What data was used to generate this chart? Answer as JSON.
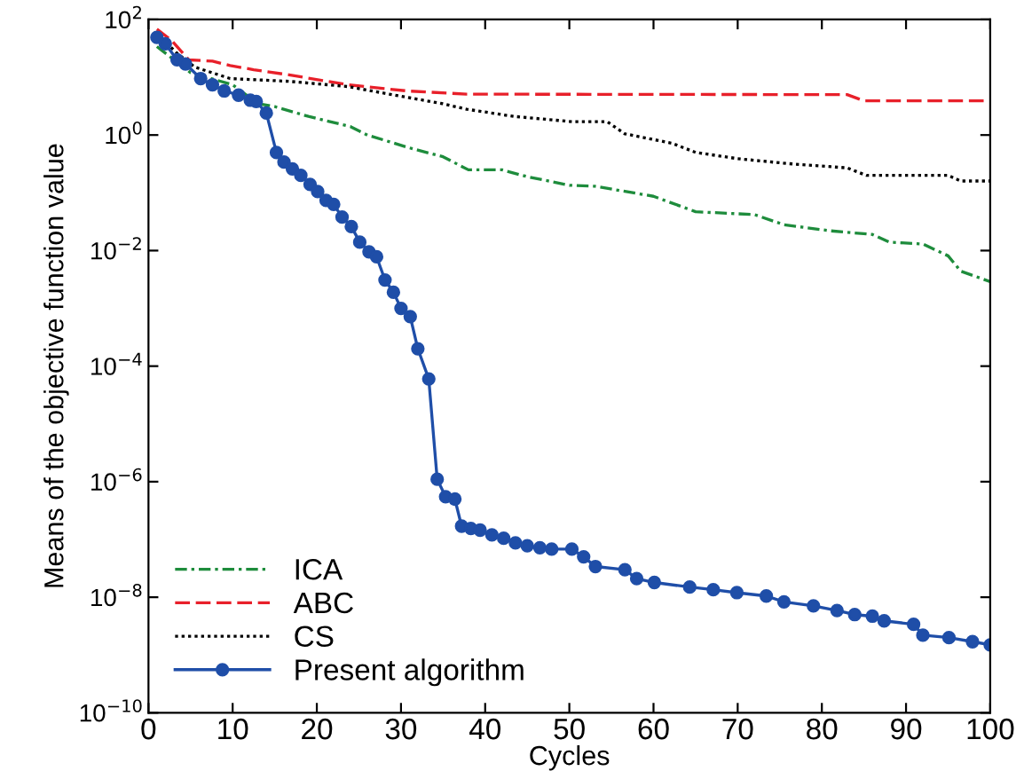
{
  "chart_data": {
    "type": "line",
    "xlabel": "Cycles",
    "ylabel": "Means of the objective function value",
    "log": "y",
    "xlim": [
      0,
      100
    ],
    "xticks": [
      0,
      10,
      20,
      30,
      40,
      50,
      60,
      70,
      80,
      90,
      100
    ],
    "ylim": [
      1e-10,
      100
    ],
    "yticks": [
      {
        "value": 1e-10,
        "label": "10$^{−10}$"
      },
      {
        "value": 1e-08,
        "label": "10$^{−8}$"
      },
      {
        "value": 1e-06,
        "label": "10$^{−6}$"
      },
      {
        "value": 0.0001,
        "label": "10$^{−4}$"
      },
      {
        "value": 0.01,
        "label": "10$^{−2}$"
      },
      {
        "value": 1,
        "label": "10$^{0}$"
      },
      {
        "value": 100,
        "label": "10$^{2}$"
      }
    ],
    "grid": false,
    "legend": "bottom left",
    "series": [
      {
        "name": "ICA",
        "color": "#1e8c3c",
        "line_style": "dashdot",
        "marker": "none",
        "x": [
          1,
          5,
          10,
          13,
          15,
          19,
          24,
          26,
          31,
          35,
          38,
          42,
          45,
          50,
          53,
          60,
          65,
          72,
          75.5,
          81,
          86,
          88,
          92,
          95,
          96.5,
          100
        ],
        "values": [
          34,
          12,
          7.4,
          3.5,
          3.1,
          2.1,
          1.4,
          1.0,
          0.6,
          0.42,
          0.25,
          0.25,
          0.19,
          0.135,
          0.13,
          0.087,
          0.047,
          0.042,
          0.028,
          0.022,
          0.019,
          0.014,
          0.013,
          0.0081,
          0.0044,
          0.0029
        ]
      },
      {
        "name": "ABC",
        "color": "#e8202a",
        "line_style": "dashed",
        "marker": "none",
        "x": [
          1,
          2.7,
          4.8,
          7.6,
          9.7,
          12.5,
          16.7,
          23.7,
          30.7,
          37.8,
          83,
          85,
          100
        ],
        "values": [
          68,
          44,
          20,
          19,
          16,
          13.5,
          11,
          7.4,
          5.8,
          5.1,
          5.0,
          3.9,
          3.9
        ]
      },
      {
        "name": "CS",
        "color": "#000000",
        "line_style": "dotted",
        "marker": "none",
        "x": [
          1,
          3.4,
          5.5,
          9.7,
          16.7,
          23.7,
          28.6,
          34.9,
          37.8,
          43.4,
          50.4,
          54.5,
          56.6,
          62.2,
          65,
          70,
          76,
          83,
          85.3,
          95,
          96.5,
          100
        ],
        "values": [
          56,
          26,
          15,
          9.5,
          8.5,
          6.9,
          5.1,
          3.5,
          2.8,
          2.1,
          1.7,
          1.7,
          1.05,
          0.72,
          0.5,
          0.39,
          0.32,
          0.27,
          0.2,
          0.2,
          0.16,
          0.16
        ]
      },
      {
        "name": "Present algorithm",
        "color": "#1f4ea8",
        "line_style": "solid",
        "marker": "circle",
        "x": [
          1,
          2,
          3.4,
          4.4,
          6.2,
          7.6,
          9,
          10.7,
          12.1,
          12.8,
          14,
          15.2,
          16.1,
          17.1,
          18.1,
          19.2,
          20.1,
          21.1,
          22,
          23,
          24.1,
          25.1,
          26.2,
          27.1,
          28.1,
          29.1,
          30,
          31.1,
          32,
          33.3,
          34.3,
          35.3,
          36.4,
          37.2,
          38.3,
          39.4,
          40.8,
          42.2,
          43.6,
          45,
          46.5,
          47.9,
          50.3,
          51.7,
          53.1,
          56.6,
          58,
          60.1,
          64.3,
          67.1,
          69.9,
          73.4,
          75.5,
          79,
          81.8,
          83.9,
          86,
          87.4,
          90.9,
          92,
          95.1,
          97.9,
          100
        ],
        "values": [
          49,
          38,
          20,
          17,
          9.5,
          7.4,
          5.8,
          4.9,
          4.0,
          3.8,
          2.4,
          0.5,
          0.34,
          0.26,
          0.2,
          0.14,
          0.105,
          0.074,
          0.063,
          0.038,
          0.026,
          0.014,
          0.0095,
          0.0078,
          0.0031,
          0.0019,
          0.001,
          0.00072,
          0.0002,
          6e-05,
          1.1e-06,
          5.5e-07,
          5e-07,
          1.7e-07,
          1.55e-07,
          1.45e-07,
          1.2e-07,
          1.05e-07,
          8.7e-08,
          7.8e-08,
          7.2e-08,
          6.8e-08,
          6.8e-08,
          5e-08,
          3.4e-08,
          3e-08,
          2.1e-08,
          1.8e-08,
          1.5e-08,
          1.35e-08,
          1.2e-08,
          1.05e-08,
          8.3e-09,
          7.1e-09,
          5.9e-09,
          5e-09,
          4.7e-09,
          3.9e-09,
          3.4e-09,
          2.2e-09,
          2e-09,
          1.7e-09,
          1.5e-09
        ]
      }
    ]
  }
}
